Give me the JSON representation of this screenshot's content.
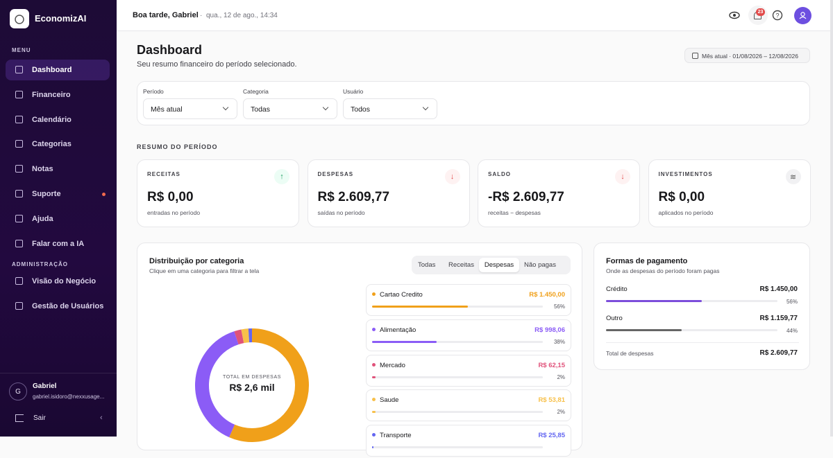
{
  "sidebar": {
    "brand": "EconomizAI",
    "menu_label": "MENU",
    "menu": [
      "Dashboard",
      "Financeiro",
      "Calendário",
      "Categorias",
      "Notas",
      "Suporte",
      "Ajuda",
      "Falar com a IA"
    ],
    "admin_label": "ADMINISTRAÇÃO",
    "admin": [
      "Visão do Negócio",
      "Gestão de Usuários"
    ],
    "user": {
      "initial": "G",
      "name": "Gabriel",
      "email": "gabriel.isidoro@nexxusage..."
    },
    "logout": "Sair"
  },
  "topbar": {
    "greeting": "Boa tarde, Gabriel",
    "datetime": "qua., 12 de ago., 14:34",
    "notifications": "23"
  },
  "page": {
    "title": "Dashboard",
    "subtitle": "Seu resumo financeiro do período selecionado.",
    "period": "Mês atual · 01/08/2026 – 12/08/2026"
  },
  "filters": [
    {
      "label": "Período",
      "value": "Mês atual"
    },
    {
      "label": "Categoria",
      "value": "Todas"
    },
    {
      "label": "Usuário",
      "value": "Todos"
    }
  ],
  "summary_title": "RESUMO DO PERÍODO",
  "cards": [
    {
      "label": "RECEITAS",
      "value": "R$ 0,00",
      "note": "entradas no período"
    },
    {
      "label": "DESPESAS",
      "value": "R$ 2.609,77",
      "note": "saídas no período"
    },
    {
      "label": "SALDO",
      "value": "-R$ 2.609,77",
      "note": "receitas − despesas"
    },
    {
      "label": "INVESTIMENTOS",
      "value": "R$ 0,00",
      "note": "aplicados no período"
    }
  ],
  "distribution": {
    "title": "Distribuição por categoria",
    "subtitle": "Clique em uma categoria para filtrar a tela",
    "tabs": [
      "Todas",
      "Receitas",
      "Despesas",
      "Não pagas"
    ],
    "active_tab": 2,
    "center_label": "TOTAL EM DESPESAS",
    "center_value": "R$ 2,6 mil",
    "categories": [
      {
        "name": "Cartao Credito",
        "amount": "R$ 1.450,00",
        "percent": 56,
        "percent_label": "56%",
        "color": "#f0a01a"
      },
      {
        "name": "Alimentação",
        "amount": "R$ 998,06",
        "percent": 38,
        "percent_label": "38%",
        "color": "#8b5cf6"
      },
      {
        "name": "Mercado",
        "amount": "R$ 62,15",
        "percent": 2,
        "percent_label": "2%",
        "color": "#e0527a"
      },
      {
        "name": "Saude",
        "amount": "R$ 53,81",
        "percent": 2,
        "percent_label": "2%",
        "color": "#f7c04a"
      },
      {
        "name": "Transporte",
        "amount": "R$ 25,85",
        "percent": 1,
        "color": "#6366f1"
      }
    ]
  },
  "payments": {
    "title": "Formas de pagamento",
    "subtitle": "Onde as despesas do período foram pagas",
    "methods": [
      {
        "name": "Crédito",
        "amount": "R$ 1.450,00",
        "percent": 56,
        "percent_label": "56%",
        "color": "#7c4ddb"
      },
      {
        "name": "Outro",
        "amount": "R$ 1.159,77",
        "percent": 44,
        "percent_label": "44%",
        "color": "#666666"
      }
    ],
    "total_label": "Total de despesas",
    "total_value": "R$ 2.609,77"
  }
}
